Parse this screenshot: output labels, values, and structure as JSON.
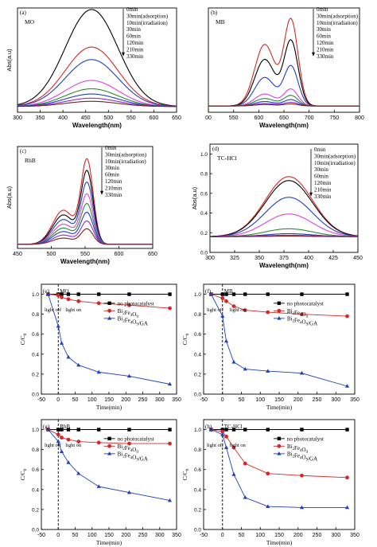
{
  "chart_data": [
    {
      "type": "line",
      "panel_label": "(a)",
      "sample": "MO",
      "xlabel": "Wavelength(nm)",
      "ylabel": "Abs(a.u)",
      "xlim": [
        300,
        650
      ],
      "ylim": [
        0,
        1.0
      ],
      "xticks": [
        "300",
        "350",
        "400",
        "450",
        "500",
        "550",
        "600",
        "650"
      ],
      "legend": [
        "0min",
        "30min(adsorption)",
        "10min(irradiation)",
        "30min",
        "60min",
        "120min",
        "210min",
        "330min"
      ],
      "series": [
        {
          "color": "#000000",
          "peak": 463,
          "width": 60,
          "amp": 0.93,
          "base": 0.055
        },
        {
          "color": "#d62728",
          "peak": 463,
          "width": 60,
          "amp": 0.57,
          "base": 0.055
        },
        {
          "color": "#1f3fbf",
          "peak": 463,
          "width": 60,
          "amp": 0.45,
          "base": 0.055
        },
        {
          "color": "#e040e0",
          "peak": 463,
          "width": 60,
          "amp": 0.25,
          "base": 0.055
        },
        {
          "color": "#2e8b2e",
          "peak": 463,
          "width": 60,
          "amp": 0.17,
          "base": 0.055
        },
        {
          "color": "#1f3fbf",
          "peak": 463,
          "width": 60,
          "amp": 0.12,
          "base": 0.055
        },
        {
          "color": "#8b2be2",
          "peak": 463,
          "width": 60,
          "amp": 0.08,
          "base": 0.055
        },
        {
          "color": "#7a1f1f",
          "peak": 463,
          "width": 60,
          "amp": 0.05,
          "base": 0.055
        }
      ]
    },
    {
      "type": "line",
      "panel_label": "(b)",
      "sample": "MB",
      "xlabel": "Wavelength(nm)",
      "ylabel": "",
      "xlim": [
        500,
        800
      ],
      "ylim": [
        0,
        1.0
      ],
      "xticks": [
        "500",
        "550",
        "600",
        "650",
        "700",
        "750",
        "800"
      ],
      "xtick_display": [
        "00",
        "550",
        "600",
        "650",
        "700",
        "750",
        "800"
      ],
      "legend": [
        "0min",
        "30min(adsorption)",
        "10min(irradiation)",
        "30min",
        "60min",
        "120min",
        "210min",
        "330min"
      ],
      "series": [
        {
          "color": "#d62728",
          "amp": 0.82,
          "base": 0.06
        },
        {
          "color": "#000000",
          "amp": 0.62,
          "base": 0.06
        },
        {
          "color": "#1f3fbf",
          "amp": 0.38,
          "base": 0.06
        },
        {
          "color": "#e040e0",
          "amp": 0.16,
          "base": 0.06
        },
        {
          "color": "#2e8b2e",
          "amp": 0.1,
          "base": 0.06
        },
        {
          "color": "#1f3fbf",
          "amp": 0.06,
          "base": 0.06
        },
        {
          "color": "#8b2be2",
          "amp": 0.035,
          "base": 0.06
        },
        {
          "color": "#7a1f1f",
          "amp": 0.02,
          "base": 0.06
        }
      ]
    },
    {
      "type": "line",
      "panel_label": "(c)",
      "sample": "RhB",
      "xlabel": "Wavelength(nm)",
      "ylabel": "Abs(a.u)",
      "xlim": [
        450,
        650
      ],
      "ylim": [
        0,
        1.0
      ],
      "xticks": [
        "450",
        "500",
        "550",
        "600",
        "650"
      ],
      "legend": [
        "0min",
        "30min(adsorption)",
        "10min(irradiation)",
        "30min",
        "60min",
        "120min",
        "210min",
        "330min"
      ],
      "series": [
        {
          "color": "#d62728",
          "amp": 0.88,
          "base": 0.04
        },
        {
          "color": "#000000",
          "amp": 0.76,
          "base": 0.04
        },
        {
          "color": "#1f3fbf",
          "amp": 0.64,
          "base": 0.04
        },
        {
          "color": "#e040e0",
          "amp": 0.52,
          "base": 0.04
        },
        {
          "color": "#2e8b2e",
          "amp": 0.42,
          "base": 0.04
        },
        {
          "color": "#1f3fbf",
          "amp": 0.33,
          "base": 0.04
        },
        {
          "color": "#8b2be2",
          "amp": 0.24,
          "base": 0.04
        },
        {
          "color": "#7a1f1f",
          "amp": 0.16,
          "base": 0.04
        }
      ]
    },
    {
      "type": "line",
      "panel_label": "(d)",
      "sample": "TC-HCl",
      "xlabel": "Wavelength(nm)",
      "ylabel": "Abs(a.u)",
      "xlim": [
        300,
        450
      ],
      "ylim": [
        0.0,
        1.1
      ],
      "xticks": [
        "300",
        "325",
        "350",
        "375",
        "400",
        "425",
        "450"
      ],
      "yticks": [
        "0.0",
        "0.2",
        "0.4",
        "0.6",
        "0.8",
        "1.0"
      ],
      "legend": [
        "0min",
        "30min(adsorption)",
        "10min(irradiation)",
        "30min",
        "60min",
        "120min",
        "210min",
        "330min"
      ],
      "series": [
        {
          "color": "#d62728",
          "peak": 380,
          "width": 24,
          "amp": 0.61,
          "base": 0.16
        },
        {
          "color": "#000000",
          "peak": 380,
          "width": 24,
          "amp": 0.57,
          "base": 0.16
        },
        {
          "color": "#1f3fbf",
          "peak": 380,
          "width": 24,
          "amp": 0.4,
          "base": 0.16
        },
        {
          "color": "#e040e0",
          "peak": 380,
          "width": 24,
          "amp": 0.23,
          "base": 0.16
        },
        {
          "color": "#2e8b2e",
          "peak": 380,
          "width": 24,
          "amp": 0.08,
          "base": 0.16
        },
        {
          "color": "#1f3fbf",
          "peak": 380,
          "width": 24,
          "amp": 0.03,
          "base": 0.16
        },
        {
          "color": "#8b2be2",
          "peak": 380,
          "width": 24,
          "amp": 0.015,
          "base": 0.16
        },
        {
          "color": "#7a1f1f",
          "peak": 380,
          "width": 24,
          "amp": 0.005,
          "base": 0.16
        }
      ]
    },
    {
      "type": "line",
      "panel_label": "(e)",
      "sample": "MO",
      "xlabel": "Time(min)",
      "ylabel": "C/C0",
      "xlim": [
        -50,
        350
      ],
      "ylim": [
        0.0,
        1.1
      ],
      "xticks": [
        "-50",
        "0",
        "50",
        "100",
        "150",
        "200",
        "250",
        "300",
        "350"
      ],
      "yticks": [
        "0.0",
        "0.2",
        "0.4",
        "0.6",
        "0.8",
        "1.0"
      ],
      "annotations": [
        "light off",
        "light on"
      ],
      "legend": [
        "no photocatalyst",
        "Bi2Fe4O9",
        "Bi2Fe4O9/GA"
      ],
      "series": [
        {
          "name": "no photocatalyst",
          "marker": "square",
          "color": "#000000",
          "x": [
            -30,
            0,
            10,
            30,
            60,
            120,
            210,
            330
          ],
          "y": [
            1.0,
            1.0,
            1.0,
            1.0,
            1.0,
            1.0,
            1.0,
            1.0
          ]
        },
        {
          "name": "Bi2Fe4O9",
          "marker": "circle",
          "color": "#d62728",
          "x": [
            -30,
            0,
            10,
            30,
            60,
            120,
            210,
            330
          ],
          "y": [
            1.0,
            0.99,
            0.97,
            0.95,
            0.93,
            0.91,
            0.89,
            0.86
          ]
        },
        {
          "name": "Bi2Fe4O9/GA",
          "marker": "triangle",
          "color": "#1f3fbf",
          "x": [
            -30,
            0,
            10,
            30,
            60,
            120,
            210,
            330
          ],
          "y": [
            1.0,
            0.68,
            0.51,
            0.37,
            0.29,
            0.22,
            0.18,
            0.1
          ]
        }
      ]
    },
    {
      "type": "line",
      "panel_label": "(f)",
      "sample": "MB",
      "xlabel": "Time(min)",
      "ylabel": "C/C0",
      "xlim": [
        -50,
        350
      ],
      "ylim": [
        0.0,
        1.1
      ],
      "xticks": [
        "-50",
        "0",
        "50",
        "100",
        "150",
        "200",
        "250",
        "300",
        "350"
      ],
      "yticks": [
        "0.0",
        "0.2",
        "0.4",
        "0.6",
        "0.8",
        "1.0"
      ],
      "annotations": [
        "light off",
        "light on"
      ],
      "legend": [
        "no photocatalyst",
        "Bi2Fe4O9",
        "Bi2Fe4O9/GA"
      ],
      "series": [
        {
          "name": "no photocatalyst",
          "marker": "square",
          "color": "#000000",
          "x": [
            -30,
            0,
            10,
            30,
            60,
            120,
            210,
            330
          ],
          "y": [
            1.0,
            1.0,
            1.0,
            1.0,
            1.0,
            1.0,
            1.0,
            1.0
          ]
        },
        {
          "name": "Bi2Fe4O9",
          "marker": "circle",
          "color": "#d62728",
          "x": [
            -30,
            0,
            10,
            30,
            60,
            120,
            210,
            330
          ],
          "y": [
            1.0,
            0.96,
            0.93,
            0.88,
            0.84,
            0.82,
            0.8,
            0.78
          ]
        },
        {
          "name": "Bi2Fe4O9/GA",
          "marker": "triangle",
          "color": "#1f3fbf",
          "x": [
            -30,
            0,
            10,
            30,
            60,
            120,
            210,
            330
          ],
          "y": [
            1.0,
            0.78,
            0.53,
            0.32,
            0.25,
            0.23,
            0.21,
            0.08
          ]
        }
      ]
    },
    {
      "type": "line",
      "panel_label": "(g)",
      "sample": "RhB",
      "xlabel": "Time(min)",
      "ylabel": "C/C0",
      "xlim": [
        -50,
        350
      ],
      "ylim": [
        0.0,
        1.1
      ],
      "xticks": [
        "-50",
        "0",
        "50",
        "100",
        "150",
        "200",
        "250",
        "300",
        "350"
      ],
      "yticks": [
        "0.0",
        "0.2",
        "0.4",
        "0.6",
        "0.8",
        "1.0"
      ],
      "annotations": [
        "light off",
        "light on"
      ],
      "legend": [
        "no photocatalyst",
        "Bi2Fe4O9",
        "Bi2Fe4O9/GA"
      ],
      "series": [
        {
          "name": "no photocatalyst",
          "marker": "square",
          "color": "#000000",
          "x": [
            -30,
            0,
            10,
            30,
            60,
            120,
            210,
            330
          ],
          "y": [
            1.0,
            1.0,
            1.0,
            1.0,
            1.0,
            1.0,
            1.0,
            1.0
          ]
        },
        {
          "name": "Bi2Fe4O9",
          "marker": "circle",
          "color": "#d62728",
          "x": [
            -30,
            0,
            10,
            30,
            60,
            120,
            210,
            330
          ],
          "y": [
            1.0,
            0.95,
            0.92,
            0.9,
            0.88,
            0.87,
            0.86,
            0.86
          ]
        },
        {
          "name": "Bi2Fe4O9/GA",
          "marker": "triangle",
          "color": "#1f3fbf",
          "x": [
            -30,
            0,
            10,
            30,
            60,
            120,
            210,
            330
          ],
          "y": [
            1.0,
            0.88,
            0.78,
            0.67,
            0.56,
            0.43,
            0.37,
            0.29
          ]
        }
      ]
    },
    {
      "type": "line",
      "panel_label": "(h)",
      "sample": "TC-HCl",
      "xlabel": "Time(min)",
      "ylabel": "C/C0",
      "xlim": [
        -50,
        350
      ],
      "ylim": [
        0.0,
        1.1
      ],
      "xticks": [
        "-50",
        "0",
        "50",
        "100",
        "150",
        "200",
        "250",
        "300",
        "350"
      ],
      "yticks": [
        "0.0",
        "0.2",
        "0.4",
        "0.6",
        "0.8",
        "1.0"
      ],
      "annotations": [
        "light off",
        "light on"
      ],
      "legend": [
        "no photocatalyst",
        "Bi2Fe4O9",
        "Bi2Fe4O9/GA"
      ],
      "series": [
        {
          "name": "no photocatalyst",
          "marker": "square",
          "color": "#000000",
          "x": [
            -30,
            0,
            10,
            30,
            60,
            120,
            210,
            330
          ],
          "y": [
            1.0,
            1.0,
            1.0,
            1.0,
            1.0,
            1.0,
            1.0,
            1.0
          ]
        },
        {
          "name": "Bi2Fe4O9",
          "marker": "circle",
          "color": "#d62728",
          "x": [
            -30,
            0,
            10,
            30,
            60,
            120,
            210,
            330
          ],
          "y": [
            1.0,
            0.98,
            0.93,
            0.82,
            0.66,
            0.56,
            0.54,
            0.52
          ]
        },
        {
          "name": "Bi2Fe4O9/GA",
          "marker": "triangle",
          "color": "#1f3fbf",
          "x": [
            -30,
            0,
            10,
            30,
            60,
            120,
            210,
            330
          ],
          "y": [
            1.0,
            0.95,
            0.82,
            0.55,
            0.32,
            0.23,
            0.22,
            0.22
          ]
        }
      ]
    }
  ]
}
